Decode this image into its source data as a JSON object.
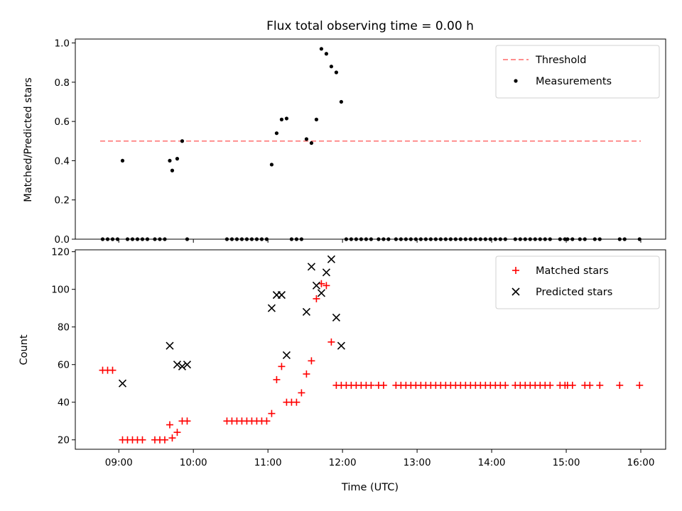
{
  "chart_data": [
    {
      "type": "scatter",
      "title": "Flux total observing time = 0.00 h",
      "xlabel": "",
      "ylabel": "Matched/Predicted stars",
      "xlim": [
        "08:25",
        "16:20"
      ],
      "ylim": [
        0,
        1.02
      ],
      "yticks": [
        "0.0",
        "0.2",
        "0.4",
        "0.6",
        "0.8",
        "1.0"
      ],
      "legend_position": "top-right",
      "threshold": {
        "name": "Threshold",
        "color": "#ff7f7f",
        "style": "dashed",
        "y": 0.5,
        "x_range": [
          "08:45",
          "16:00"
        ]
      },
      "series": [
        {
          "name": "Measurements",
          "marker": "dot",
          "color": "#000000",
          "x": [
            "08:47",
            "08:51",
            "08:55",
            "08:59",
            "09:03",
            "09:07",
            "09:11",
            "09:15",
            "09:19",
            "09:23",
            "09:29",
            "09:33",
            "09:37",
            "09:41",
            "09:43",
            "09:47",
            "09:51",
            "09:55",
            "10:27",
            "10:31",
            "10:35",
            "10:39",
            "10:43",
            "10:47",
            "10:51",
            "10:55",
            "10:59",
            "11:03",
            "11:07",
            "11:11",
            "11:15",
            "11:19",
            "11:23",
            "11:27",
            "11:31",
            "11:35",
            "11:39",
            "11:43",
            "11:47",
            "11:51",
            "11:55",
            "11:59",
            "12:03",
            "12:07",
            "12:11",
            "12:15",
            "12:19",
            "12:23",
            "12:29",
            "12:33",
            "12:37",
            "12:43",
            "12:47",
            "12:51",
            "12:55",
            "12:59",
            "13:03",
            "13:07",
            "13:11",
            "13:15",
            "13:19",
            "13:23",
            "13:27",
            "13:31",
            "13:35",
            "13:39",
            "13:43",
            "13:47",
            "13:51",
            "13:55",
            "13:59",
            "14:03",
            "14:07",
            "14:11",
            "14:19",
            "14:23",
            "14:27",
            "14:31",
            "14:35",
            "14:39",
            "14:43",
            "14:47",
            "14:55",
            "14:59",
            "15:01",
            "15:05",
            "15:11",
            "15:15",
            "15:23",
            "15:27",
            "15:43",
            "15:47",
            "15:59"
          ],
          "y": [
            0,
            0,
            0,
            0,
            0.4,
            0,
            0,
            0,
            0,
            0,
            0,
            0,
            0,
            0.4,
            0.35,
            0.41,
            0.5,
            0,
            0,
            0,
            0,
            0,
            0,
            0,
            0,
            0,
            0,
            0.38,
            0.54,
            0.61,
            0.615,
            0,
            0,
            0,
            0.51,
            0.49,
            0.61,
            0.97,
            0.945,
            0.88,
            0.85,
            0.7,
            0,
            0,
            0,
            0,
            0,
            0,
            0,
            0,
            0,
            0,
            0,
            0,
            0,
            0,
            0,
            0,
            0,
            0,
            0,
            0,
            0,
            0,
            0,
            0,
            0,
            0,
            0,
            0,
            0,
            0,
            0,
            0,
            0,
            0,
            0,
            0,
            0,
            0,
            0,
            0,
            0,
            0,
            0,
            0,
            0,
            0,
            0,
            0,
            0,
            0,
            0
          ]
        }
      ]
    },
    {
      "type": "scatter",
      "title": "",
      "xlabel": "Time (UTC)",
      "ylabel": "Count",
      "xlim": [
        "08:25",
        "16:20"
      ],
      "ylim": [
        15,
        121
      ],
      "xticks": [
        "09:00",
        "10:00",
        "11:00",
        "12:00",
        "13:00",
        "14:00",
        "15:00",
        "16:00"
      ],
      "yticks": [
        "20",
        "40",
        "60",
        "80",
        "100",
        "120"
      ],
      "legend_position": "top-right",
      "series": [
        {
          "name": "Matched stars",
          "marker": "plus",
          "color": "#ff0000",
          "x": [
            "08:47",
            "08:51",
            "08:55",
            "09:03",
            "09:07",
            "09:11",
            "09:15",
            "09:19",
            "09:29",
            "09:33",
            "09:37",
            "09:41",
            "09:43",
            "09:47",
            "09:51",
            "09:55",
            "10:27",
            "10:31",
            "10:35",
            "10:39",
            "10:43",
            "10:47",
            "10:51",
            "10:55",
            "10:59",
            "11:03",
            "11:07",
            "11:11",
            "11:15",
            "11:19",
            "11:23",
            "11:27",
            "11:31",
            "11:35",
            "11:39",
            "11:43",
            "11:47",
            "11:51",
            "11:55",
            "11:59",
            "12:03",
            "12:07",
            "12:11",
            "12:15",
            "12:19",
            "12:23",
            "12:29",
            "12:33",
            "12:43",
            "12:47",
            "12:51",
            "12:55",
            "12:59",
            "13:03",
            "13:07",
            "13:11",
            "13:15",
            "13:19",
            "13:23",
            "13:27",
            "13:31",
            "13:35",
            "13:39",
            "13:43",
            "13:47",
            "13:51",
            "13:55",
            "13:59",
            "14:03",
            "14:07",
            "14:11",
            "14:19",
            "14:23",
            "14:27",
            "14:31",
            "14:35",
            "14:39",
            "14:43",
            "14:47",
            "14:55",
            "14:59",
            "15:01",
            "15:05",
            "15:15",
            "15:19",
            "15:27",
            "15:43",
            "15:59"
          ],
          "y": [
            57,
            57,
            57,
            20,
            20,
            20,
            20,
            20,
            20,
            20,
            20,
            28,
            21,
            24,
            30,
            30,
            30,
            30,
            30,
            30,
            30,
            30,
            30,
            30,
            30,
            34,
            52,
            59,
            40,
            40,
            40,
            45,
            55,
            62,
            95,
            103,
            102,
            72,
            49,
            49,
            49,
            49,
            49,
            49,
            49,
            49,
            49,
            49,
            49,
            49,
            49,
            49,
            49,
            49,
            49,
            49,
            49,
            49,
            49,
            49,
            49,
            49,
            49,
            49,
            49,
            49,
            49,
            49,
            49,
            49,
            49,
            49,
            49,
            49,
            49,
            49,
            49,
            49,
            49,
            49,
            49,
            49,
            49,
            49,
            49,
            49,
            49,
            49
          ]
        },
        {
          "name": "Predicted stars",
          "marker": "x",
          "color": "#000000",
          "x": [
            "09:03",
            "09:41",
            "09:47",
            "09:51",
            "09:55",
            "11:03",
            "11:07",
            "11:11",
            "11:15",
            "11:31",
            "11:35",
            "11:39",
            "11:43",
            "11:47",
            "11:51",
            "11:55",
            "11:59"
          ],
          "y": [
            50,
            70,
            60,
            59,
            60,
            90,
            97,
            97,
            65,
            88,
            112,
            102,
            98,
            109,
            116,
            85,
            70
          ]
        }
      ]
    }
  ]
}
